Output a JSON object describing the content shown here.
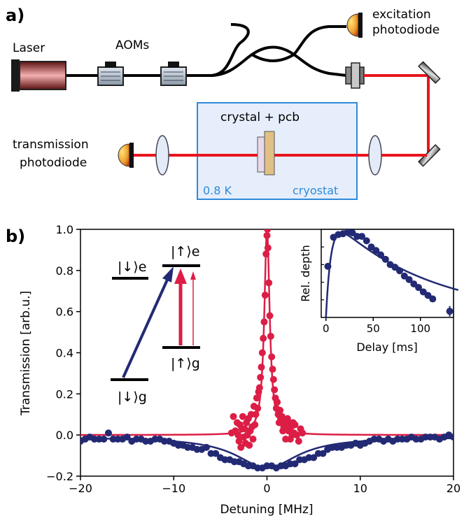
{
  "panel_a": {
    "label": "a)",
    "laser": "Laser",
    "aoms": "AOMs",
    "excitation_line1": "excitation",
    "excitation_line2": "photodiode",
    "transmission_line1": "transmission",
    "transmission_line2": "photodiode",
    "crystal": "crystal + pcb",
    "temperature": "0.8 K",
    "cryostat": "cryostat",
    "colors": {
      "beam": "#e8141e",
      "cryostat_fill": "#e6eefb",
      "cryostat_border": "#2e8ad8"
    }
  },
  "panel_b": {
    "label": "b)",
    "levels": {
      "down_e": "|↓⟩e",
      "up_e": "|↑⟩e",
      "up_g": "|↑⟩g",
      "down_g": "|↓⟩g"
    }
  },
  "chart_data": [
    {
      "type": "scatter",
      "xlabel": "Detuning [MHz]",
      "ylabel": "Transmission [arb.u.]",
      "xlim": [
        -20,
        20
      ],
      "ylim": [
        -0.2,
        1.0
      ],
      "xticks": [
        "−20",
        "−10",
        "0",
        "10",
        "20"
      ],
      "yticks": [
        "−0.2",
        "0.0",
        "0.2",
        "0.4",
        "0.6",
        "0.8",
        "1.0"
      ],
      "series": [
        {
          "color": "#232a74",
          "points": [
            [
              -20,
              -0.03
            ],
            [
              -19.5,
              -0.02
            ],
            [
              -19,
              -0.01
            ],
            [
              -18.5,
              -0.02
            ],
            [
              -18,
              -0.02
            ],
            [
              -17.5,
              -0.02
            ],
            [
              -17,
              0.01
            ],
            [
              -16.5,
              -0.02
            ],
            [
              -16,
              -0.02
            ],
            [
              -15.5,
              -0.02
            ],
            [
              -15,
              -0.01
            ],
            [
              -14.5,
              -0.03
            ],
            [
              -14,
              -0.02
            ],
            [
              -13.5,
              -0.02
            ],
            [
              -13,
              -0.03
            ],
            [
              -12.5,
              -0.03
            ],
            [
              -12,
              -0.02
            ],
            [
              -11.5,
              -0.02
            ],
            [
              -11,
              -0.03
            ],
            [
              -10.5,
              -0.03
            ],
            [
              -10,
              -0.04
            ],
            [
              -9.5,
              -0.05
            ],
            [
              -9,
              -0.05
            ],
            [
              -8.5,
              -0.06
            ],
            [
              -8,
              -0.06
            ],
            [
              -7.5,
              -0.07
            ],
            [
              -7,
              -0.07
            ],
            [
              -6.5,
              -0.06
            ],
            [
              -6,
              -0.09
            ],
            [
              -5.5,
              -0.09
            ],
            [
              -5,
              -0.11
            ],
            [
              -4.5,
              -0.12
            ],
            [
              -4,
              -0.12
            ],
            [
              -3.5,
              -0.13
            ],
            [
              -3,
              -0.13
            ],
            [
              -2.5,
              -0.14
            ],
            [
              -2,
              -0.15
            ],
            [
              -1.5,
              -0.15
            ],
            [
              -1,
              -0.16
            ],
            [
              -0.5,
              -0.16
            ],
            [
              0,
              -0.15
            ],
            [
              0.5,
              -0.15
            ],
            [
              1,
              -0.16
            ],
            [
              1.5,
              -0.15
            ],
            [
              2,
              -0.15
            ],
            [
              2.5,
              -0.14
            ],
            [
              3,
              -0.14
            ],
            [
              3.5,
              -0.12
            ],
            [
              4,
              -0.12
            ],
            [
              4.5,
              -0.11
            ],
            [
              5,
              -0.11
            ],
            [
              5.5,
              -0.09
            ],
            [
              6,
              -0.09
            ],
            [
              6.5,
              -0.07
            ],
            [
              7,
              -0.06
            ],
            [
              7.5,
              -0.06
            ],
            [
              8,
              -0.06
            ],
            [
              8.5,
              -0.05
            ],
            [
              9,
              -0.05
            ],
            [
              9.5,
              -0.04
            ],
            [
              10,
              -0.05
            ],
            [
              10.5,
              -0.04
            ],
            [
              11,
              -0.03
            ],
            [
              11.5,
              -0.02
            ],
            [
              12,
              -0.02
            ],
            [
              12.5,
              -0.03
            ],
            [
              13,
              -0.02
            ],
            [
              13.5,
              -0.03
            ],
            [
              14,
              -0.02
            ],
            [
              14.5,
              -0.02
            ],
            [
              15,
              -0.02
            ],
            [
              15.5,
              -0.01
            ],
            [
              16,
              -0.02
            ],
            [
              16.5,
              -0.02
            ],
            [
              17,
              -0.01
            ],
            [
              17.5,
              -0.01
            ],
            [
              18,
              -0.01
            ],
            [
              18.5,
              -0.02
            ],
            [
              19,
              -0.01
            ],
            [
              19.5,
              0.0
            ],
            [
              20,
              -0.01
            ]
          ],
          "fit": {
            "model": "lorentzian",
            "offset": -0.01,
            "amplitude": -0.15,
            "center": 0,
            "hwhm": 4.0
          }
        },
        {
          "color": "#dc1e46",
          "points": [
            [
              -3.8,
              0.01
            ],
            [
              -3.6,
              0.09
            ],
            [
              -3.4,
              0.02
            ],
            [
              -3.2,
              0.06
            ],
            [
              -3.1,
              0.0
            ],
            [
              -3.0,
              -0.03
            ],
            [
              -2.9,
              0.05
            ],
            [
              -2.8,
              -0.06
            ],
            [
              -2.7,
              0.03
            ],
            [
              -2.6,
              0.09
            ],
            [
              -2.5,
              -0.01
            ],
            [
              -2.4,
              0.03
            ],
            [
              -2.3,
              -0.04
            ],
            [
              -2.2,
              0.06
            ],
            [
              -2.1,
              0.0
            ],
            [
              -2.0,
              0.08
            ],
            [
              -1.9,
              -0.05
            ],
            [
              -1.8,
              0.02
            ],
            [
              -1.7,
              0.1
            ],
            [
              -1.6,
              0.04
            ],
            [
              -1.5,
              -0.02
            ],
            [
              -1.4,
              0.14
            ],
            [
              -1.3,
              0.05
            ],
            [
              -1.2,
              0.1
            ],
            [
              -1.1,
              0.18
            ],
            [
              -1.0,
              0.13
            ],
            [
              -0.9,
              0.21
            ],
            [
              -0.8,
              0.23
            ],
            [
              -0.7,
              0.28
            ],
            [
              -0.6,
              0.33
            ],
            [
              -0.5,
              0.4
            ],
            [
              -0.4,
              0.47
            ],
            [
              -0.3,
              0.55
            ],
            [
              -0.2,
              0.68
            ],
            [
              -0.1,
              0.88
            ],
            [
              0.0,
              0.97
            ],
            [
              0.05,
              1.0
            ],
            [
              0.1,
              0.91
            ],
            [
              0.2,
              0.74
            ],
            [
              0.3,
              0.58
            ],
            [
              0.4,
              0.48
            ],
            [
              0.5,
              0.38
            ],
            [
              0.6,
              0.32
            ],
            [
              0.7,
              0.27
            ],
            [
              0.8,
              0.22
            ],
            [
              0.9,
              0.18
            ],
            [
              1.0,
              0.13
            ],
            [
              1.1,
              0.16
            ],
            [
              1.2,
              0.1
            ],
            [
              1.3,
              0.06
            ],
            [
              1.4,
              0.12
            ],
            [
              1.5,
              0.07
            ],
            [
              1.6,
              0.09
            ],
            [
              1.7,
              0.02
            ],
            [
              1.8,
              0.04
            ],
            [
              1.9,
              0.07
            ],
            [
              2.0,
              -0.02
            ],
            [
              2.1,
              0.05
            ],
            [
              2.2,
              0.08
            ],
            [
              2.3,
              0.02
            ],
            [
              2.4,
              0.06
            ],
            [
              2.5,
              -0.02
            ],
            [
              2.6,
              0.04
            ],
            [
              2.7,
              0.0
            ],
            [
              2.8,
              0.06
            ],
            [
              2.9,
              0.01
            ],
            [
              3.0,
              0.05
            ],
            [
              3.2,
              0.0
            ],
            [
              3.4,
              -0.03
            ],
            [
              3.6,
              0.03
            ],
            [
              3.8,
              0.01
            ]
          ],
          "fit": {
            "model": "lorentzian",
            "offset": 0.0,
            "amplitude": 1.0,
            "center": 0,
            "hwhm": 0.35
          }
        }
      ]
    },
    {
      "type": "scatter",
      "title": "",
      "xlabel": "Delay [ms]",
      "ylabel": "Rel. depth",
      "xlim": [
        -5,
        135
      ],
      "ylim": [
        0,
        1.0
      ],
      "xticks": [
        "0",
        "50",
        "100"
      ],
      "series": [
        {
          "color": "#232a74",
          "points": [
            [
              2,
              0.58
            ],
            [
              8,
              0.91
            ],
            [
              13,
              0.94
            ],
            [
              18,
              0.95
            ],
            [
              23,
              0.97
            ],
            [
              28,
              0.96
            ],
            [
              33,
              0.92
            ],
            [
              38,
              0.92
            ],
            [
              43,
              0.87
            ],
            [
              48,
              0.8
            ],
            [
              53,
              0.76
            ],
            [
              58,
              0.71
            ],
            [
              63,
              0.66
            ],
            [
              68,
              0.6
            ],
            [
              73,
              0.57
            ],
            [
              78,
              0.53
            ],
            [
              83,
              0.47
            ],
            [
              88,
              0.43
            ],
            [
              93,
              0.38
            ],
            [
              98,
              0.34
            ],
            [
              103,
              0.29
            ],
            [
              108,
              0.25
            ],
            [
              113,
              0.21
            ],
            [
              131,
              0.07
            ]
          ],
          "error_bar": {
            "x": 131,
            "y": 0.07,
            "err": 0.06
          }
        }
      ]
    }
  ]
}
